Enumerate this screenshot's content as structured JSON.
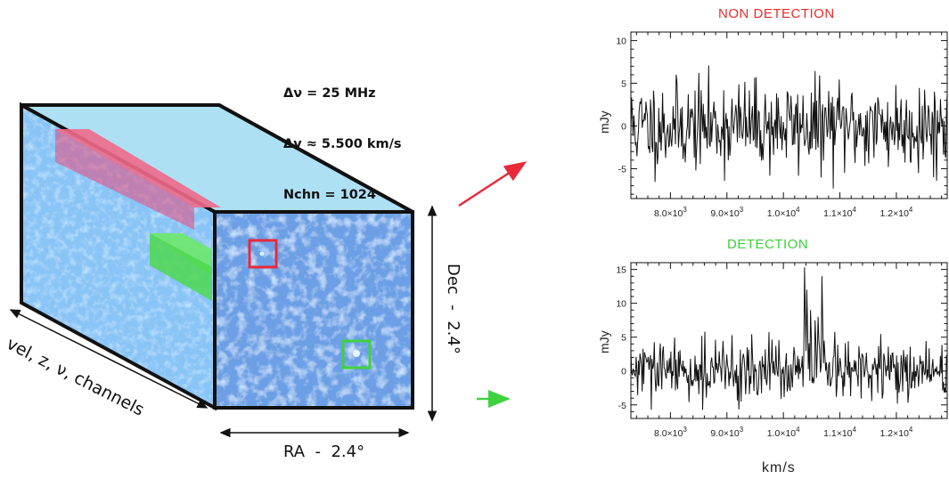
{
  "cube": {
    "params": [
      "Δν = 25 MHz",
      "Δv ≈ 5.500 km/s",
      "Nchn = 1024"
    ],
    "axis_velocity": "vel, z, ν, channels",
    "axis_ra": "RA  -  2.4°",
    "axis_dec": "Dec  -  2.4°",
    "colors": {
      "face_sky": "#aee0f4",
      "face_noise": "#3a6fd0",
      "red_box": "#e8293a",
      "green_box": "#3fd23f",
      "slab_red": "#ee3a6e",
      "slab_green": "#5fe05a"
    }
  },
  "panels": {
    "top_title": "NON DETECTION",
    "bottom_title": "DETECTION",
    "ylabel": "mJy",
    "xlabel": "km/s"
  },
  "chart_data": [
    {
      "type": "line",
      "title": "NON DETECTION",
      "xlabel": "",
      "ylabel": "mJy",
      "xlim": [
        7300,
        12900
      ],
      "ylim": [
        -8.5,
        11
      ],
      "x_ticks": [
        {
          "v": 8000,
          "mant": "8.0",
          "exp": "3"
        },
        {
          "v": 9000,
          "mant": "9.0",
          "exp": "3"
        },
        {
          "v": 10000,
          "mant": "1.0",
          "exp": "4"
        },
        {
          "v": 11000,
          "mant": "1.1",
          "exp": "4"
        },
        {
          "v": 12000,
          "mant": "1.2",
          "exp": "4"
        }
      ],
      "y_ticks": [
        -5,
        0,
        5,
        10
      ],
      "series": [
        {
          "noise_sigma": 2.6,
          "seed": 11,
          "features": []
        }
      ]
    },
    {
      "type": "line",
      "title": "DETECTION",
      "xlabel": "km/s",
      "ylabel": "mJy",
      "xlim": [
        7300,
        12900
      ],
      "ylim": [
        -7,
        16
      ],
      "x_ticks": [
        {
          "v": 8000,
          "mant": "8.0",
          "exp": "3"
        },
        {
          "v": 9000,
          "mant": "9.0",
          "exp": "3"
        },
        {
          "v": 10000,
          "mant": "1.0",
          "exp": "4"
        },
        {
          "v": 11000,
          "mant": "1.1",
          "exp": "4"
        },
        {
          "v": 12000,
          "mant": "1.2",
          "exp": "4"
        }
      ],
      "y_ticks": [
        -5,
        0,
        5,
        10,
        15
      ],
      "series": [
        {
          "noise_sigma": 2.2,
          "seed": 29,
          "features": [
            {
              "x": 10380,
              "y": 15.3
            },
            {
              "x": 10420,
              "y": 12.0
            },
            {
              "x": 10480,
              "y": 9.0
            },
            {
              "x": 10560,
              "y": 7.5
            },
            {
              "x": 10620,
              "y": 8.0
            },
            {
              "x": 10680,
              "y": 14.0
            },
            {
              "x": 10720,
              "y": 4.5
            }
          ]
        }
      ]
    }
  ]
}
